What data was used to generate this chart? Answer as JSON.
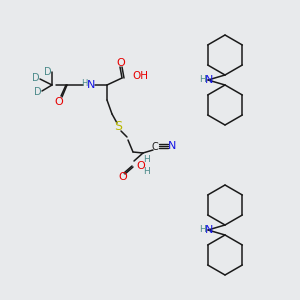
{
  "background_color": "#e8eaec",
  "figsize": [
    3.0,
    3.0
  ],
  "dpi": 100,
  "colors": {
    "C": "#1a1a1a",
    "N": "#1414e6",
    "O": "#e60000",
    "S": "#b8b800",
    "D": "#4a8a8a",
    "H": "#4a8a8a",
    "bond": "#1a1a1a"
  }
}
